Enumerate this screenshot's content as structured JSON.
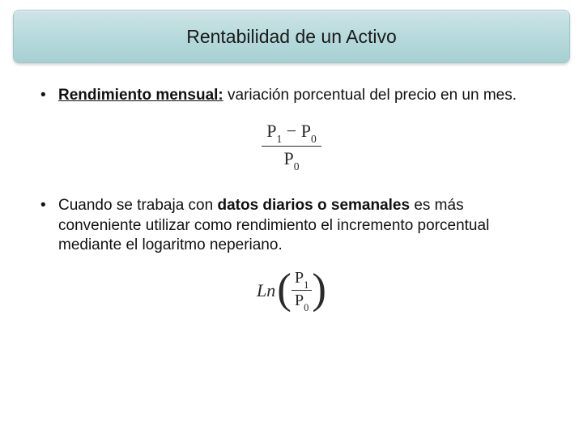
{
  "colors": {
    "banner_gradient_top": "#cfe4e6",
    "banner_gradient_mid": "#b9dbdd",
    "banner_gradient_bottom": "#a7d0d3",
    "banner_border": "#9cc7ca",
    "text": "#111111",
    "formula_text": "#2a2a2a",
    "background": "#ffffff"
  },
  "title": "Rentabilidad de un Activo",
  "bullets": {
    "b1": {
      "bold_part": "Rendimiento mensual:",
      "rest": " variación porcentual del precio en un mes."
    },
    "b2": {
      "pre": "Cuando se trabaja con ",
      "bold_part": "datos diarios o semanales",
      "post": " es más conveniente utilizar como rendimiento el incremento porcentual mediante el logaritmo neperiano."
    }
  },
  "formulas": {
    "f1": {
      "numerator_p1_var": "P",
      "numerator_p1_sub": "1",
      "numerator_minus": " − ",
      "numerator_p0_var": "P",
      "numerator_p0_sub": "0",
      "denominator_var": "P",
      "denominator_sub": "0"
    },
    "f2": {
      "ln": "Ln",
      "lparen": "(",
      "rparen": ")",
      "num_var": "P",
      "num_sub": "1",
      "den_var": "P",
      "den_sub": "0"
    }
  }
}
